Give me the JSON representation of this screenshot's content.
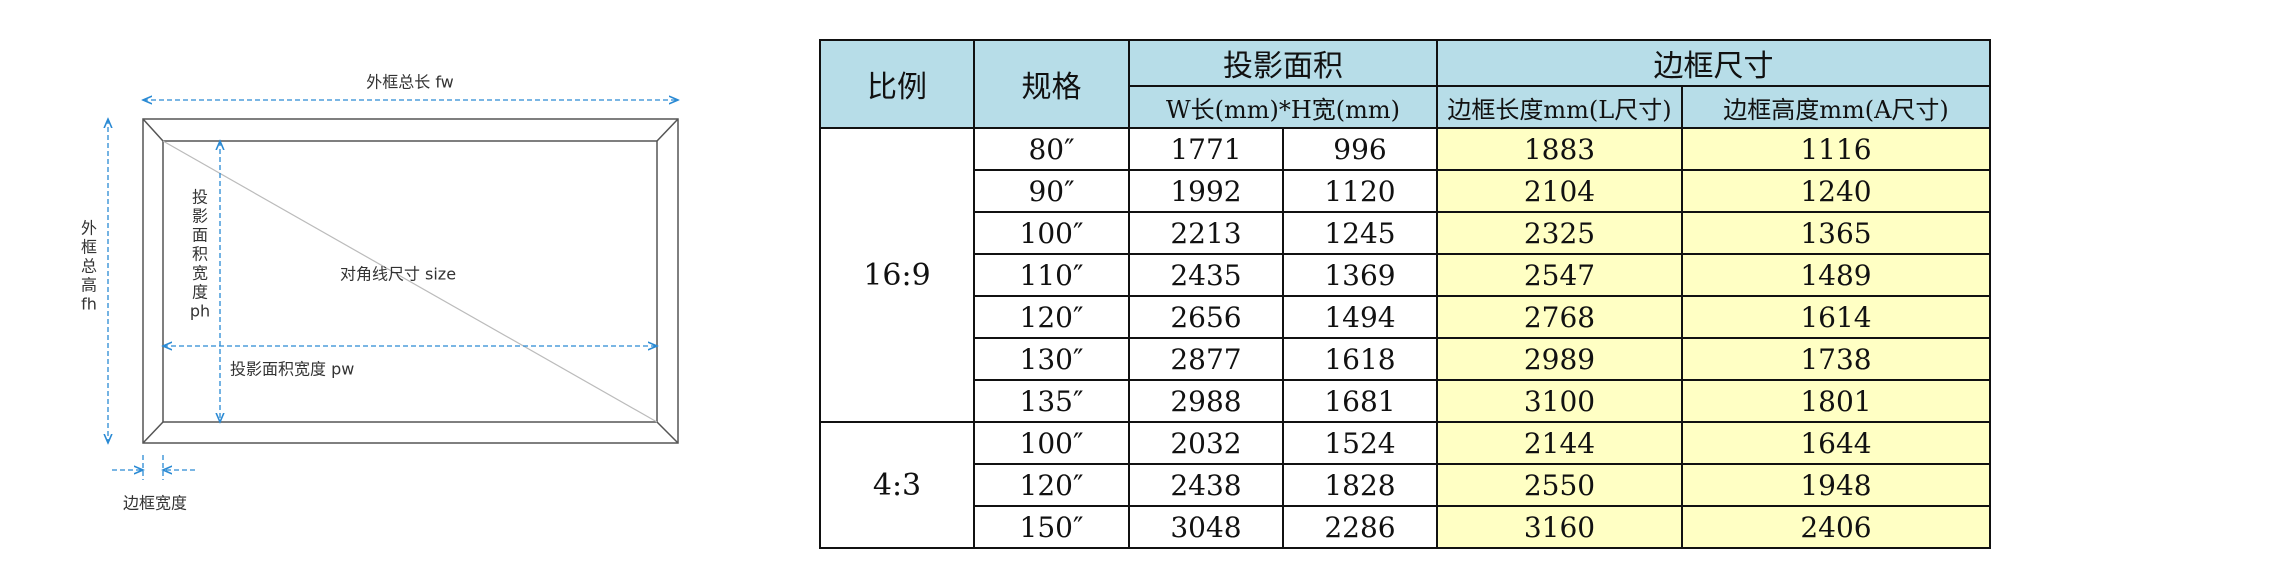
{
  "diagram": {
    "outer_length": "外框总长 fw",
    "outer_height_lines": [
      "外",
      "框",
      "总",
      "高",
      "fh"
    ],
    "projection_height_lines": [
      "投",
      "影",
      "面",
      "积",
      "宽",
      "度",
      "ph"
    ],
    "diagonal": "对角线尺寸 size",
    "projection_width": "投影面积宽度 pw",
    "border_width": "边框宽度"
  },
  "table": {
    "header": {
      "ratio": "比例",
      "spec": "规格",
      "projection": "投影面积",
      "projection_sub": "W长(mm)*H宽(mm)",
      "frame": "边框尺寸",
      "frame_length": "边框长度mm(L尺寸)",
      "frame_height": "边框高度mm(A尺寸)"
    },
    "groups": [
      {
        "ratio": "16:9",
        "rows": [
          [
            "80″",
            "1771",
            "996",
            "1883",
            "1116"
          ],
          [
            "90″",
            "1992",
            "1120",
            "2104",
            "1240"
          ],
          [
            "100″",
            "2213",
            "1245",
            "2325",
            "1365"
          ],
          [
            "110″",
            "2435",
            "1369",
            "2547",
            "1489"
          ],
          [
            "120″",
            "2656",
            "1494",
            "2768",
            "1614"
          ],
          [
            "130″",
            "2877",
            "1618",
            "2989",
            "1738"
          ],
          [
            "135″",
            "2988",
            "1681",
            "3100",
            "1801"
          ]
        ]
      },
      {
        "ratio": "4:3",
        "rows": [
          [
            "100″",
            "2032",
            "1524",
            "2144",
            "1644"
          ],
          [
            "120″",
            "2438",
            "1828",
            "2550",
            "1948"
          ],
          [
            "150″",
            "3048",
            "2286",
            "3160",
            "2406"
          ]
        ]
      }
    ]
  }
}
